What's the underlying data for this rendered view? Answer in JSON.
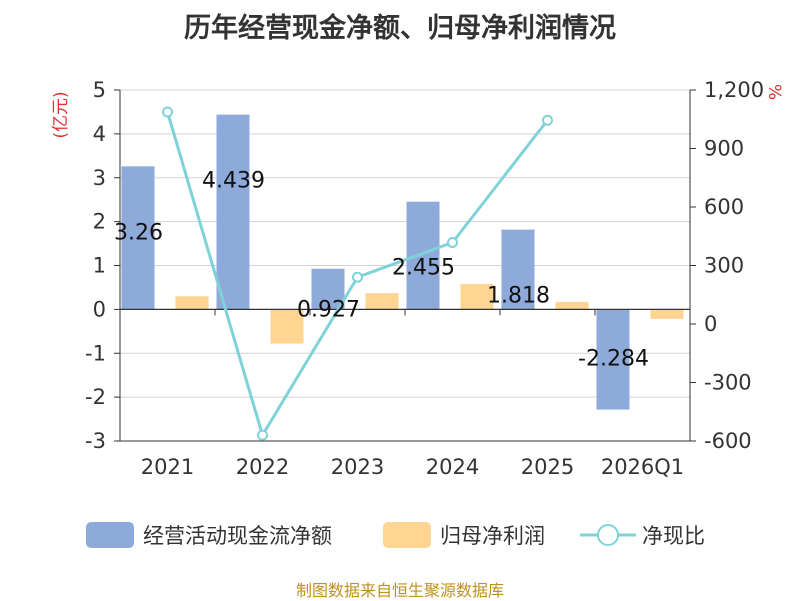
{
  "chart_data": {
    "type": "bar",
    "title": "历年经营现金净额、归母净利润情况",
    "categories": [
      "2021",
      "2022",
      "2023",
      "2024",
      "2025",
      "2026Q1"
    ],
    "series": [
      {
        "name": "经营活动现金流净额",
        "type": "bar",
        "axis": "left",
        "color": "#8eaadb",
        "values": [
          3.26,
          4.439,
          0.927,
          2.455,
          1.818,
          -2.284
        ],
        "labels": [
          "3.26",
          "4.439",
          "0.927",
          "2.455",
          "1.818",
          "-2.284"
        ]
      },
      {
        "name": "归母净利润",
        "type": "bar",
        "axis": "left",
        "color": "#ffd591",
        "values": [
          0.3,
          -0.78,
          0.37,
          0.58,
          0.17,
          -0.22
        ]
      },
      {
        "name": "净现比",
        "type": "line",
        "axis": "right",
        "color": "#7fd3d8",
        "values": [
          1087,
          -570,
          240,
          418,
          1045,
          null
        ]
      }
    ],
    "y_left": {
      "label": "(亿元)",
      "min": -3,
      "max": 5,
      "ticks": [
        5,
        4,
        3,
        2,
        1,
        0,
        -1,
        -2,
        -3
      ],
      "tick_labels": [
        "5",
        "4",
        "3",
        "2",
        "1",
        "0",
        "-1",
        "-2",
        "-3"
      ]
    },
    "y_right": {
      "label": "%",
      "min": -600,
      "max": 1200,
      "ticks": [
        1200,
        900,
        600,
        300,
        0,
        -300,
        -600
      ],
      "tick_labels": [
        "1,200",
        "900",
        "600",
        "300",
        "0",
        "-300",
        "-600"
      ]
    },
    "grid": true,
    "legend_position": "bottom",
    "legend": [
      "经营活动现金流净额",
      "归母净利润",
      "净现比"
    ]
  },
  "source": "制图数据来自恒生聚源数据库"
}
